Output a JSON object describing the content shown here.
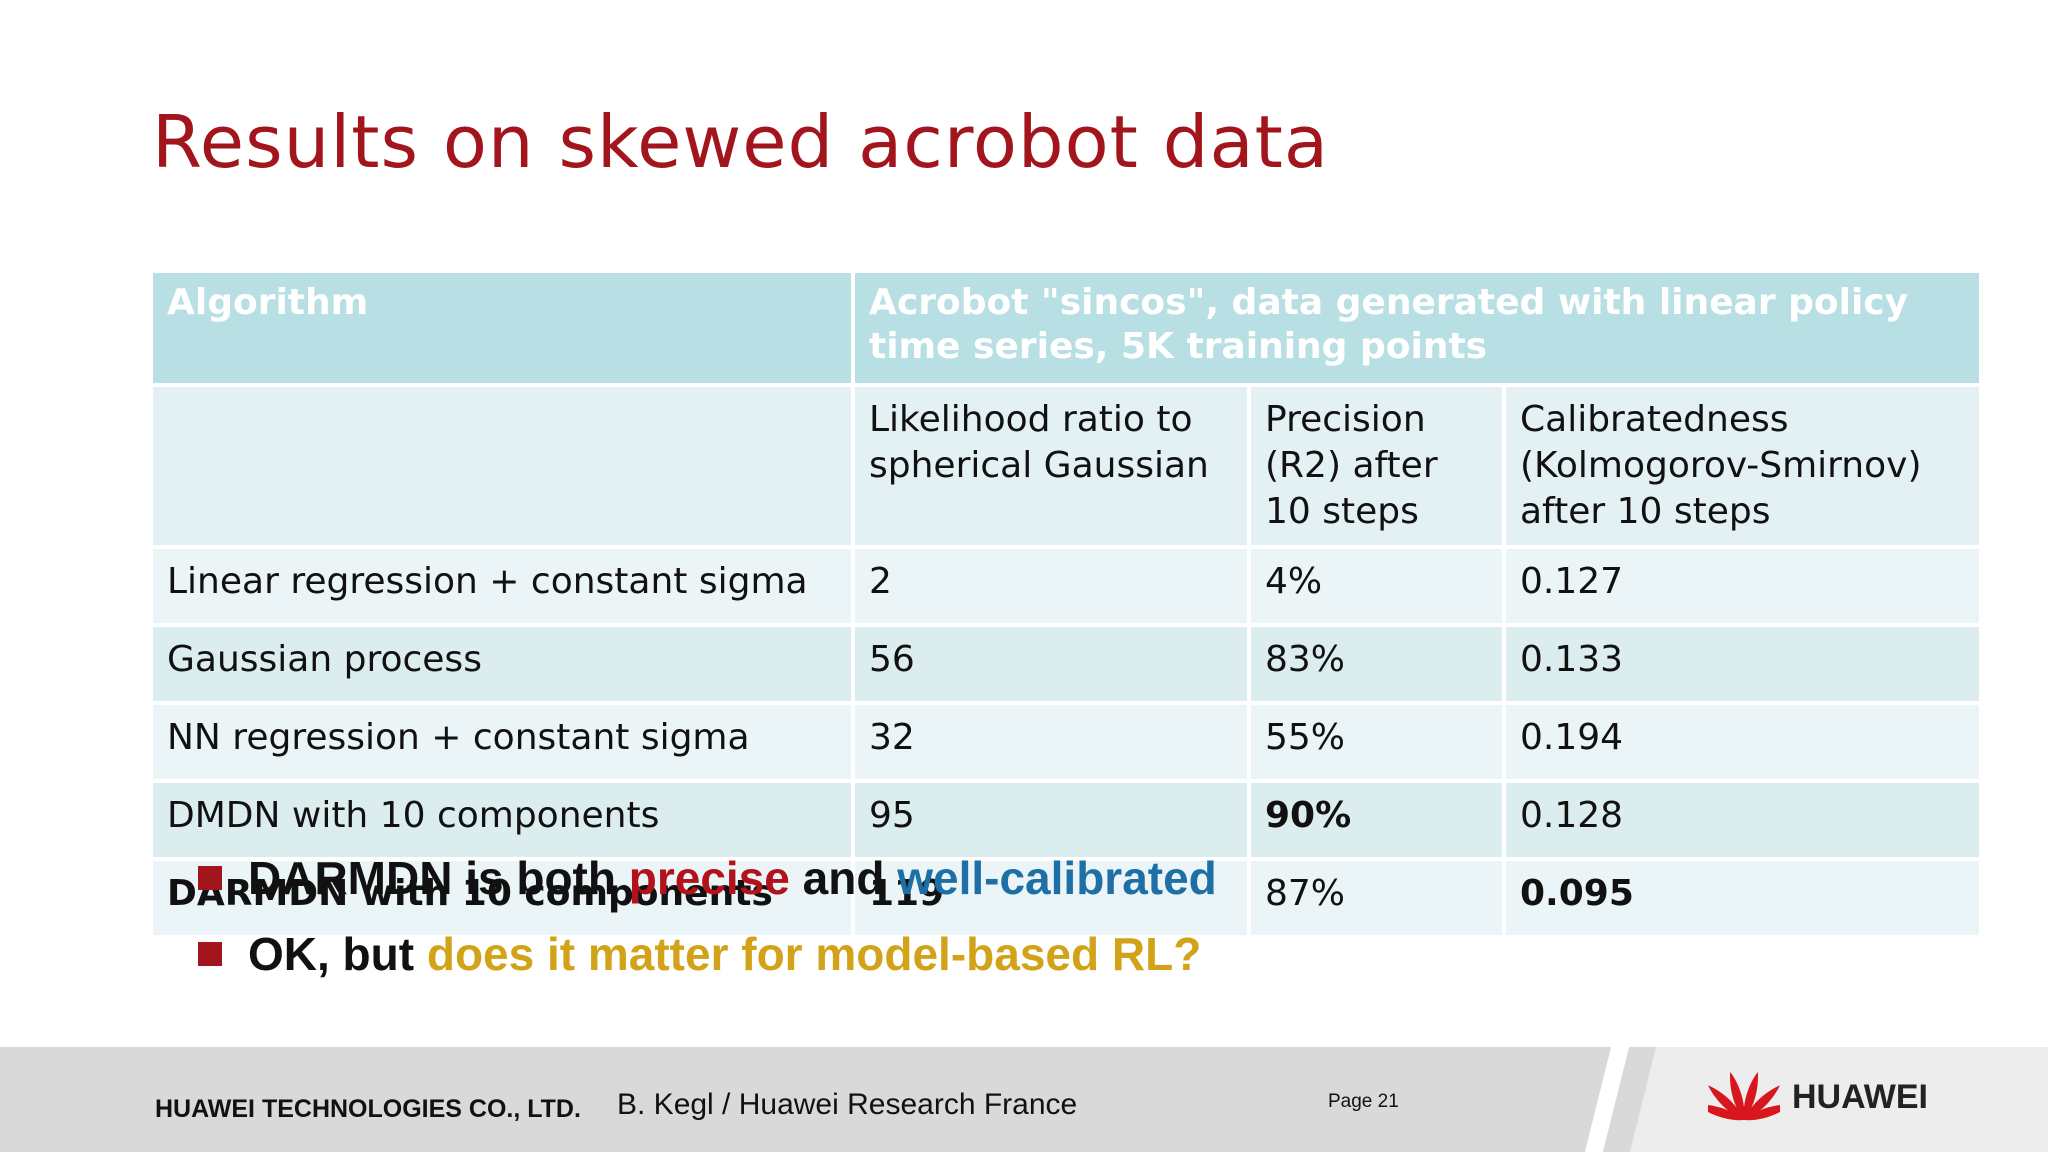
{
  "slide": {
    "title": "Results on skewed acrobot data"
  },
  "table": {
    "header_algorithm": "Algorithm",
    "header_group": "Acrobot \"sincos\", data generated with linear policy time series, 5K training points",
    "subheaders": [
      "Likelihood ratio to spherical Gaussian",
      "Precision (R2) after 10 steps",
      "Calibratedness (Kolmogorov-Smirnov) after 10 steps"
    ],
    "rows": [
      {
        "algorithm": "Linear regression + constant sigma",
        "likelihood": "2",
        "precision": "4%",
        "calibratedness": "0.127"
      },
      {
        "algorithm": "Gaussian process",
        "likelihood": "56",
        "precision": "83%",
        "calibratedness": "0.133"
      },
      {
        "algorithm": "NN regression + constant sigma",
        "likelihood": "32",
        "precision": "55%",
        "calibratedness": "0.194"
      },
      {
        "algorithm": "DMDN with 10 components",
        "likelihood": "95",
        "precision": "90%",
        "calibratedness": "0.128"
      },
      {
        "algorithm": "DARMDN with 10 components",
        "likelihood": "119",
        "precision": "87%",
        "calibratedness": "0.095"
      }
    ]
  },
  "bullets": [
    {
      "parts": [
        "DARMDN is both ",
        "precise",
        " and ",
        "well-calibrated"
      ]
    },
    {
      "parts": [
        "OK, but ",
        "does it matter for model-based RL?"
      ]
    }
  ],
  "footer": {
    "company": "HUAWEI TECHNOLOGIES CO., LTD.",
    "author": "B. Kegl / Huawei Research France",
    "page": "Page 21",
    "logo_text": "HUAWEI"
  },
  "colors": {
    "title": "#a3151c",
    "header_bg": "#b8dfe3",
    "accent_red": "#b3121b",
    "accent_blue": "#1d6fa5",
    "accent_gold": "#d2a319"
  }
}
